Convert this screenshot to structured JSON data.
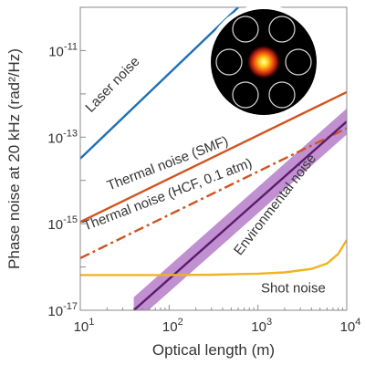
{
  "chart_data": {
    "type": "line",
    "xlabel": "Optical length (m)",
    "ylabel": "Phase noise at 20 kHz (rad²/Hz)",
    "xscale": "log",
    "yscale": "log",
    "xlim": [
      10,
      10000
    ],
    "ylim": [
      1e-17,
      1e-10
    ],
    "grid": false,
    "x_ticks": [
      {
        "value": 10,
        "base": "10",
        "exp": "1"
      },
      {
        "value": 100,
        "base": "10",
        "exp": "2"
      },
      {
        "value": 1000,
        "base": "10",
        "exp": "3"
      },
      {
        "value": 10000,
        "base": "10",
        "exp": "4"
      }
    ],
    "y_ticks": [
      {
        "value": 1e-17,
        "base": "10",
        "exp": "-17"
      },
      {
        "value": 1e-15,
        "base": "10",
        "exp": "-15"
      },
      {
        "value": 1e-13,
        "base": "10",
        "exp": "-13"
      },
      {
        "value": 1e-11,
        "base": "10",
        "exp": "-11"
      }
    ],
    "series": [
      {
        "name": "Laser noise",
        "color": "#1f6fb5",
        "style": "solid",
        "x": [
          10,
          600
        ],
        "y": [
          3.2e-14,
          1e-10
        ]
      },
      {
        "name": "Thermal noise (SMF)",
        "color": "#d1531f",
        "style": "solid",
        "x": [
          10,
          10000
        ],
        "y": [
          1.1e-15,
          1.1e-12
        ]
      },
      {
        "name": "Thermal noise (HCF, 0.1 atm)",
        "color": "#d1531f",
        "style": "dashdot",
        "x": [
          10,
          10000
        ],
        "y": [
          1.6e-16,
          1.6e-13
        ]
      },
      {
        "name": "Environmental noise",
        "color": "#5c1a6e",
        "style": "solid",
        "band_color": "#b57cc8",
        "x": [
          40,
          10000
        ],
        "y": [
          1e-17,
          2.3e-13
        ],
        "band_low": [
          5e-18,
          1.15e-13
        ],
        "band_high": [
          2e-17,
          4.6e-13
        ]
      },
      {
        "name": "Shot noise",
        "color": "#f0b323",
        "style": "solid",
        "x": [
          10,
          30,
          100,
          300,
          1000,
          2000,
          4000,
          6000,
          8000,
          10000
        ],
        "y": [
          6.5e-17,
          6.5e-17,
          6.5e-17,
          6.6e-17,
          7e-17,
          7.5e-17,
          9e-17,
          1.2e-16,
          2e-16,
          4.2e-16
        ]
      }
    ]
  }
}
